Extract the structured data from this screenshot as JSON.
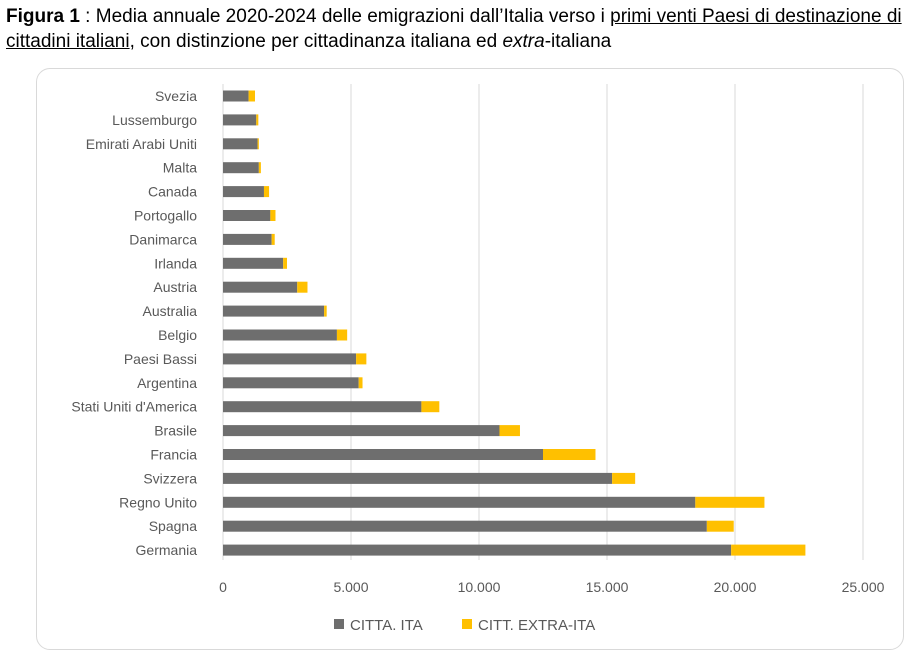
{
  "caption": {
    "lead": "Figura 1",
    "sep": " : ",
    "text1": "Media annuale 2020-2024 delle emigrazioni dall’Italia verso i ",
    "underlined": "primi venti Paesi di destinazione di cittadini italiani",
    "text2": ", con distinzione per cittadinanza italiana ed ",
    "italic": "extra",
    "text3": "-italiana"
  },
  "chart_data": {
    "type": "bar",
    "orientation": "horizontal",
    "stacked": true,
    "categories": [
      "Svezia",
      "Lussemburgo",
      "Emirati Arabi Uniti",
      "Malta",
      "Canada",
      "Portogallo",
      "Danimarca",
      "Irlanda",
      "Austria",
      "Australia",
      "Belgio",
      "Paesi Bassi",
      "Argentina",
      "Stati Uniti d'America",
      "Brasile",
      "Francia",
      "Svizzera",
      "Regno Unito",
      "Spagna",
      "Germania"
    ],
    "series": [
      {
        "name": "CITTA. ITA",
        "color": "#6e6e6e",
        "values": [
          1000,
          1300,
          1350,
          1400,
          1600,
          1850,
          1900,
          2350,
          2900,
          3950,
          4450,
          5200,
          5300,
          7750,
          10800,
          12500,
          15200,
          18450,
          18900,
          19850
        ]
      },
      {
        "name": "CITT. EXTRA-ITA",
        "color": "#ffc000",
        "values": [
          250,
          80,
          50,
          80,
          200,
          200,
          120,
          150,
          400,
          100,
          400,
          400,
          150,
          700,
          800,
          2050,
          900,
          2700,
          1050,
          2900
        ]
      }
    ],
    "xlim": [
      0,
      25000
    ],
    "xticks": [
      "0",
      "5.000",
      "10.000",
      "15.000",
      "20.000",
      "25.000"
    ],
    "grid": true,
    "legend": "bottom"
  }
}
